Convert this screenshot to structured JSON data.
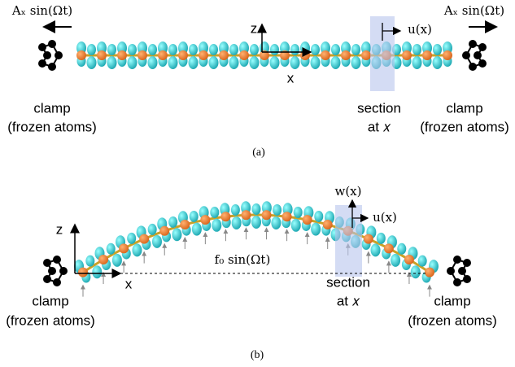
{
  "panels": [
    {
      "label": "(a)",
      "force_left": "Aₓ sin(Ωt)",
      "force_right": "Aₓ sin(Ωt)",
      "axis_z": "z",
      "axis_x": "x",
      "displacement_u": "u(x)",
      "clamp_left": [
        "clamp",
        "(frozen atoms)"
      ],
      "clamp_right": [
        "clamp",
        "(frozen atoms)"
      ],
      "section": [
        "section",
        "at 𝑥"
      ]
    },
    {
      "label": "(b)",
      "axis_z": "z",
      "axis_x": "x",
      "displacement_w": "w(x)",
      "displacement_u": "u(x)",
      "load": "f₀ sin(Ωt)",
      "clamp_left": [
        "clamp",
        "(frozen atoms)"
      ],
      "clamp_right": [
        "clamp",
        "(frozen atoms)"
      ],
      "section": [
        "section",
        "at 𝑥"
      ]
    }
  ]
}
